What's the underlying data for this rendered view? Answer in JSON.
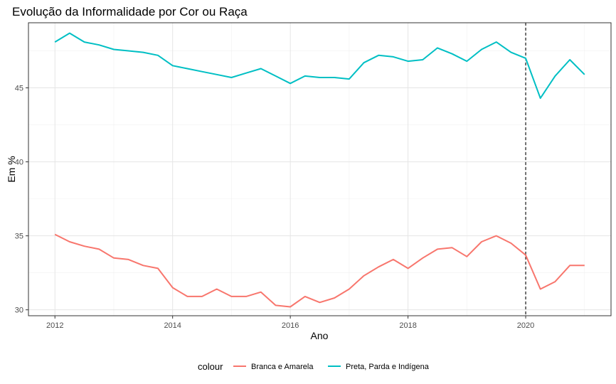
{
  "chart_data": {
    "type": "line",
    "title": "Evolução da Informalidade por Cor ou Raça",
    "xlabel": "Ano",
    "ylabel": "Em %",
    "xlim": [
      2011.55,
      2021.45
    ],
    "ylim": [
      29.6,
      49.4
    ],
    "x_ticks": [
      2012,
      2014,
      2016,
      2018,
      2020
    ],
    "y_ticks": [
      30,
      35,
      40,
      45
    ],
    "grid": true,
    "vline": 2020,
    "legend": {
      "title": "colour",
      "position": "bottom"
    },
    "x": [
      2012,
      2012.25,
      2012.5,
      2012.75,
      2013,
      2013.25,
      2013.5,
      2013.75,
      2014,
      2014.25,
      2014.5,
      2014.75,
      2015,
      2015.25,
      2015.5,
      2015.75,
      2016,
      2016.25,
      2016.5,
      2016.75,
      2017,
      2017.25,
      2017.5,
      2017.75,
      2018,
      2018.25,
      2018.5,
      2018.75,
      2019,
      2019.25,
      2019.5,
      2019.75,
      2020,
      2020.25,
      2020.5,
      2020.75,
      2021
    ],
    "series": [
      {
        "name": "Branca e Amarela",
        "color": "#F8766D",
        "values": [
          35.1,
          34.6,
          34.3,
          34.1,
          33.5,
          33.4,
          33.0,
          32.8,
          31.5,
          30.9,
          30.9,
          31.4,
          30.9,
          30.9,
          31.2,
          30.3,
          30.2,
          30.9,
          30.5,
          30.8,
          31.4,
          32.3,
          32.9,
          33.4,
          32.8,
          33.5,
          34.1,
          34.2,
          33.6,
          34.6,
          35.0,
          34.5,
          33.7,
          31.4,
          31.9,
          33.0,
          33.0
        ]
      },
      {
        "name": "Preta, Parda e Indígena",
        "color": "#00BFC4",
        "values": [
          48.1,
          48.7,
          48.1,
          47.9,
          47.6,
          47.5,
          47.4,
          47.2,
          46.5,
          46.3,
          46.1,
          45.9,
          45.7,
          46.0,
          46.3,
          45.8,
          45.3,
          45.8,
          45.7,
          45.7,
          45.6,
          46.7,
          47.2,
          47.1,
          46.8,
          46.9,
          47.7,
          47.3,
          46.8,
          47.6,
          48.1,
          47.4,
          47.0,
          44.3,
          45.8,
          46.9,
          45.9
        ]
      }
    ]
  }
}
